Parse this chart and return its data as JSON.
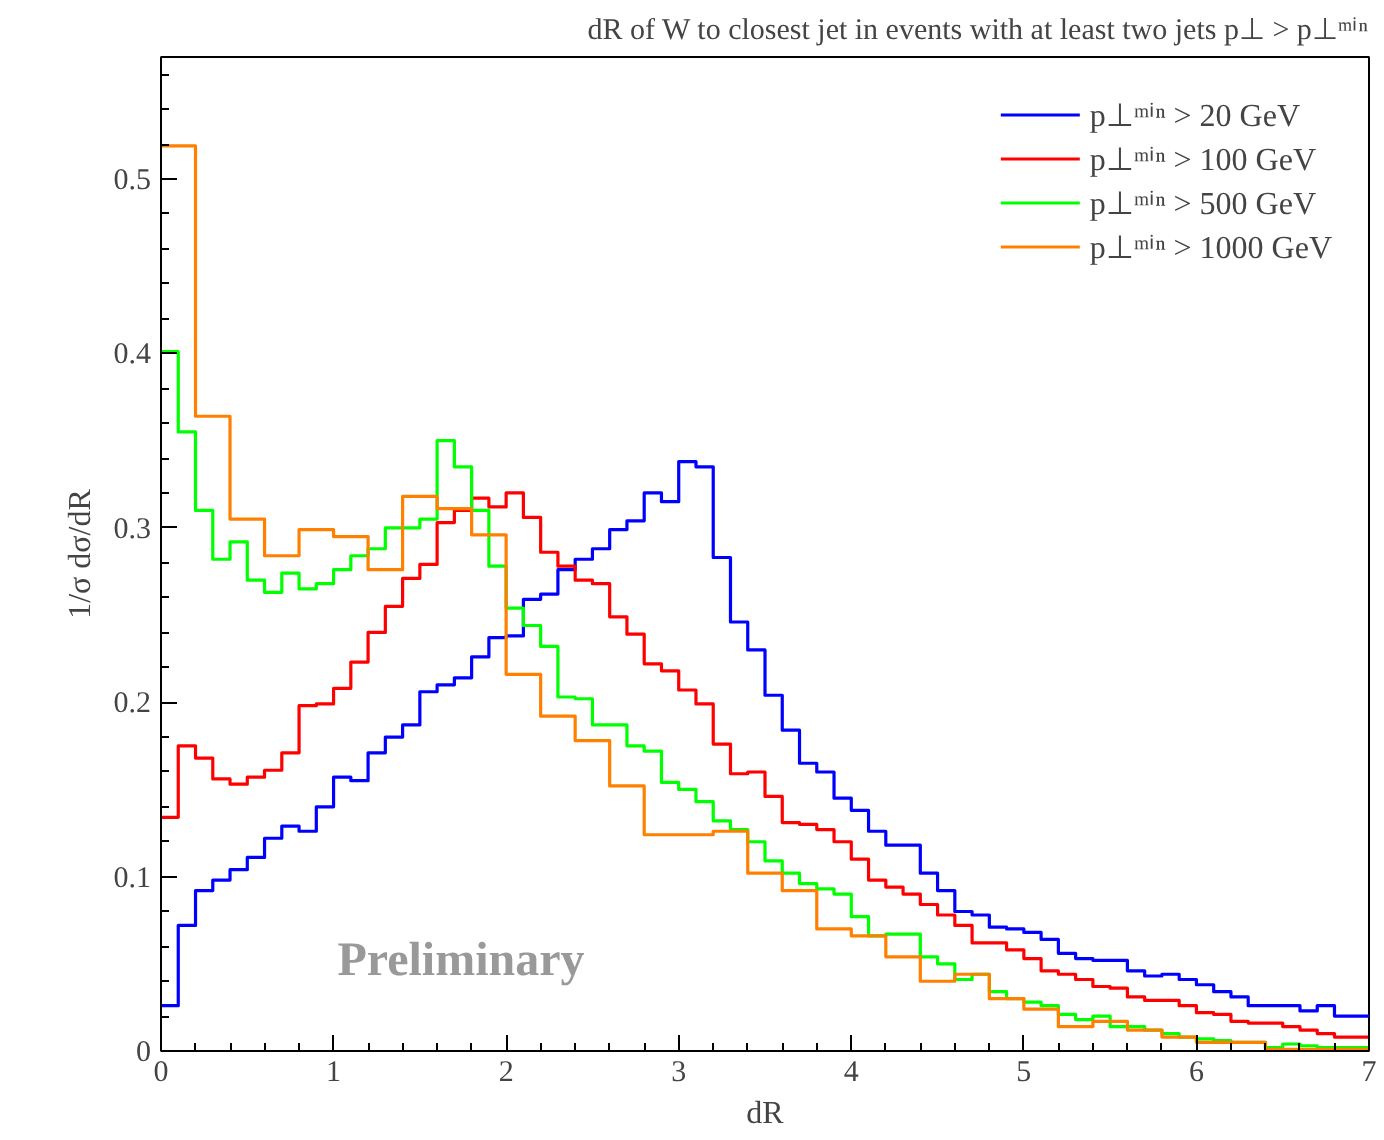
{
  "chart_data": {
    "type": "step",
    "title": "dR of W to closest jet in events with at least two jets p⊥ > p⊥ᵐⁱⁿ",
    "xlabel": "dR",
    "ylabel": "1/σ dσ/dR",
    "xlim": [
      0,
      7
    ],
    "ylim": [
      0,
      0.57
    ],
    "xticks": [
      0,
      1,
      2,
      3,
      4,
      5,
      6,
      7
    ],
    "yticks": [
      0,
      0.1,
      0.2,
      0.3,
      0.4,
      0.5
    ],
    "grid": false,
    "legend": "top right",
    "annotations": [
      "Preliminary"
    ],
    "series": [
      {
        "name": "p⊥ᵐⁱⁿ > 20 GeV",
        "color": "#0000ff",
        "x": [
          0,
          0.1,
          0.2,
          0.3,
          0.4,
          0.5,
          0.6,
          0.7,
          0.8,
          0.9,
          1,
          1.1,
          1.2,
          1.3,
          1.4,
          1.5,
          1.6,
          1.7,
          1.8,
          1.9,
          2,
          2.1,
          2.2,
          2.3,
          2.4,
          2.5,
          2.6,
          2.7,
          2.8,
          2.9,
          3,
          3.1,
          3.2,
          3.3,
          3.4,
          3.5,
          3.6,
          3.7,
          3.8,
          3.9,
          4,
          4.1,
          4.2,
          4.3,
          4.4,
          4.5,
          4.6,
          4.7,
          4.8,
          4.9,
          5,
          5.1,
          5.2,
          5.3,
          5.4,
          5.5,
          5.6,
          5.7,
          5.8,
          5.9,
          6,
          6.1,
          6.2,
          6.3,
          6.4,
          6.5,
          6.6,
          6.7,
          6.8,
          6.9,
          7
        ],
        "values": [
          0.026,
          0.072,
          0.092,
          0.098,
          0.104,
          0.111,
          0.122,
          0.129,
          0.126,
          0.14,
          0.157,
          0.155,
          0.171,
          0.18,
          0.187,
          0.206,
          0.21,
          0.214,
          0.226,
          0.237,
          0.238,
          0.259,
          0.262,
          0.276,
          0.282,
          0.288,
          0.299,
          0.304,
          0.32,
          0.315,
          0.338,
          0.335,
          0.283,
          0.246,
          0.23,
          0.204,
          0.184,
          0.165,
          0.16,
          0.145,
          0.138,
          0.126,
          0.118,
          0.118,
          0.102,
          0.092,
          0.08,
          0.078,
          0.071,
          0.07,
          0.068,
          0.064,
          0.056,
          0.053,
          0.052,
          0.052,
          0.046,
          0.043,
          0.044,
          0.041,
          0.038,
          0.034,
          0.031,
          0.026,
          0.026,
          0.026,
          0.023,
          0.026,
          0.02,
          0.02,
          0.02
        ]
      },
      {
        "name": "p⊥ᵐⁱⁿ > 100 GeV",
        "color": "#ff0000",
        "x": [
          0,
          0.1,
          0.2,
          0.3,
          0.4,
          0.5,
          0.6,
          0.7,
          0.8,
          0.9,
          1,
          1.1,
          1.2,
          1.3,
          1.4,
          1.5,
          1.6,
          1.7,
          1.8,
          1.9,
          2,
          2.1,
          2.2,
          2.3,
          2.4,
          2.5,
          2.6,
          2.7,
          2.8,
          2.9,
          3,
          3.1,
          3.2,
          3.3,
          3.4,
          3.5,
          3.6,
          3.7,
          3.8,
          3.9,
          4,
          4.1,
          4.2,
          4.3,
          4.4,
          4.5,
          4.6,
          4.7,
          4.8,
          4.9,
          5,
          5.1,
          5.2,
          5.3,
          5.4,
          5.5,
          5.6,
          5.7,
          5.8,
          5.9,
          6,
          6.1,
          6.2,
          6.3,
          6.4,
          6.5,
          6.6,
          6.7,
          6.8,
          6.9,
          7
        ],
        "values": [
          0.134,
          0.175,
          0.168,
          0.156,
          0.153,
          0.157,
          0.161,
          0.171,
          0.198,
          0.199,
          0.208,
          0.223,
          0.24,
          0.255,
          0.271,
          0.279,
          0.303,
          0.31,
          0.317,
          0.312,
          0.32,
          0.306,
          0.286,
          0.278,
          0.27,
          0.268,
          0.249,
          0.239,
          0.222,
          0.218,
          0.207,
          0.199,
          0.176,
          0.159,
          0.16,
          0.146,
          0.131,
          0.13,
          0.127,
          0.12,
          0.11,
          0.098,
          0.094,
          0.09,
          0.084,
          0.078,
          0.072,
          0.062,
          0.062,
          0.058,
          0.053,
          0.046,
          0.044,
          0.041,
          0.037,
          0.036,
          0.031,
          0.029,
          0.029,
          0.026,
          0.022,
          0.021,
          0.017,
          0.016,
          0.016,
          0.014,
          0.012,
          0.01,
          0.008,
          0.008,
          0.008
        ]
      },
      {
        "name": "p⊥ᵐⁱⁿ > 500 GeV",
        "color": "#00ff00",
        "x": [
          0,
          0.1,
          0.2,
          0.3,
          0.4,
          0.5,
          0.6,
          0.7,
          0.8,
          0.9,
          1,
          1.1,
          1.2,
          1.3,
          1.4,
          1.5,
          1.6,
          1.7,
          1.8,
          1.9,
          2,
          2.1,
          2.2,
          2.3,
          2.4,
          2.5,
          2.6,
          2.7,
          2.8,
          2.9,
          3,
          3.1,
          3.2,
          3.3,
          3.4,
          3.5,
          3.6,
          3.7,
          3.8,
          3.9,
          4,
          4.1,
          4.2,
          4.3,
          4.4,
          4.5,
          4.6,
          4.7,
          4.8,
          4.9,
          5,
          5.1,
          5.2,
          5.3,
          5.4,
          5.5,
          5.6,
          5.7,
          5.8,
          5.9,
          6,
          6.1,
          6.2,
          6.3,
          6.4,
          6.5,
          6.6,
          6.7,
          6.8,
          6.9,
          7
        ],
        "values": [
          0.401,
          0.355,
          0.31,
          0.282,
          0.292,
          0.27,
          0.263,
          0.274,
          0.265,
          0.268,
          0.276,
          0.284,
          0.288,
          0.3,
          0.3,
          0.305,
          0.35,
          0.335,
          0.31,
          0.278,
          0.254,
          0.244,
          0.232,
          0.203,
          0.202,
          0.187,
          0.187,
          0.175,
          0.172,
          0.154,
          0.15,
          0.143,
          0.132,
          0.127,
          0.12,
          0.109,
          0.102,
          0.096,
          0.093,
          0.09,
          0.077,
          0.066,
          0.067,
          0.067,
          0.054,
          0.05,
          0.041,
          0.044,
          0.034,
          0.03,
          0.028,
          0.026,
          0.021,
          0.018,
          0.02,
          0.014,
          0.014,
          0.012,
          0.01,
          0.008,
          0.007,
          0.006,
          0.005,
          0.005,
          0.002,
          0.004,
          0.003,
          0.002,
          0.002,
          0.002,
          0.002
        ]
      },
      {
        "name": "p⊥ᵐⁱⁿ > 1000 GeV",
        "color": "#ff8000",
        "x": [
          0,
          0.2,
          0.4,
          0.6,
          0.8,
          1,
          1.2,
          1.4,
          1.6,
          1.8,
          2,
          2.2,
          2.4,
          2.6,
          2.8,
          3,
          3.2,
          3.4,
          3.6,
          3.8,
          4,
          4.2,
          4.4,
          4.6,
          4.8,
          5,
          5.2,
          5.4,
          5.6,
          5.8,
          6,
          6.2,
          6.4,
          6.6,
          6.8,
          7
        ],
        "values": [
          0.519,
          0.364,
          0.305,
          0.284,
          0.299,
          0.295,
          0.276,
          0.318,
          0.311,
          0.296,
          0.216,
          0.192,
          0.178,
          0.152,
          0.124,
          0.124,
          0.126,
          0.102,
          0.092,
          0.07,
          0.066,
          0.054,
          0.04,
          0.044,
          0.03,
          0.024,
          0.014,
          0.017,
          0.012,
          0.008,
          0.005,
          0.005,
          0.001,
          0.001,
          0.001,
          0.001
        ]
      }
    ]
  }
}
